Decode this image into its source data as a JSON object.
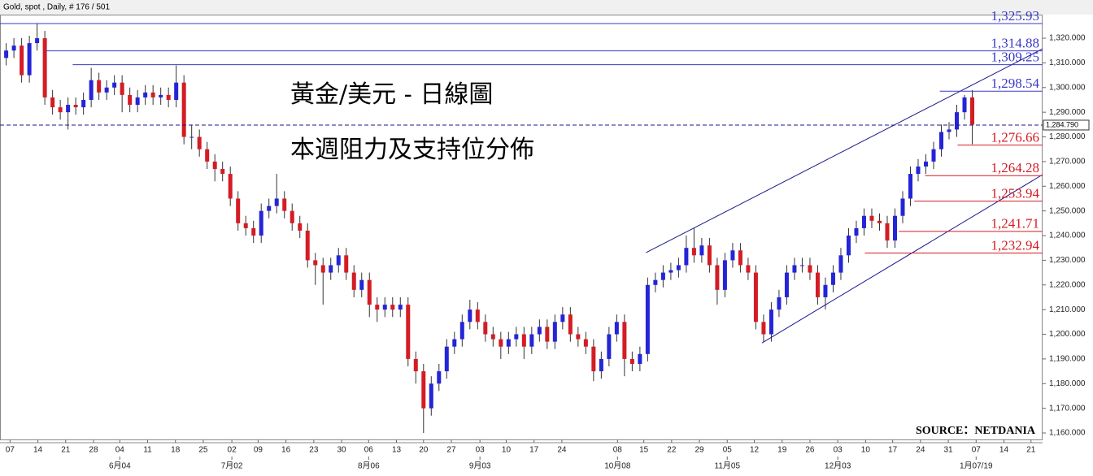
{
  "chart_data": {
    "type": "candlestick",
    "header": "Gold, spot , Daily, # 176 / 501",
    "title": "黃金/美元 - 日線圖",
    "subtitle": "本週阻力及支持位分佈",
    "source": "SOURCE：NETDANIA",
    "up_color": "#2424d8",
    "down_color": "#d41c24",
    "open": [
      1312,
      1315,
      1317,
      1305,
      1318,
      1320,
      1296,
      1292,
      1290,
      1293,
      1292,
      1295,
      1303,
      1298,
      1300,
      1302,
      1297,
      1293,
      1296,
      1298,
      1296,
      1297,
      1295,
      1302,
      1280,
      1280,
      1275,
      1270,
      1267,
      1265,
      1255,
      1245,
      1243,
      1240,
      1250,
      1252,
      1255,
      1250,
      1245,
      1242,
      1230,
      1228,
      1225,
      1228,
      1232,
      1225,
      1218,
      1222,
      1212,
      1210,
      1212,
      1210,
      1212,
      1190,
      1185,
      1170,
      1180,
      1185,
      1195,
      1198,
      1205,
      1210,
      1205,
      1200,
      1198,
      1195,
      1198,
      1200,
      1195,
      1200,
      1203,
      1197,
      1205,
      1208,
      1200,
      1198,
      1195,
      1185,
      1190,
      1200,
      1205,
      1190,
      1188,
      1192,
      1220,
      1222,
      1225,
      1226,
      1228,
      1235,
      1232,
      1236,
      1228,
      1218,
      1230,
      1234,
      1228,
      1225,
      1205,
      1200,
      1210,
      1215,
      1225,
      1228,
      1228,
      1225,
      1215,
      1220,
      1225,
      1232,
      1240,
      1243,
      1248,
      1246,
      1245,
      1238,
      1248,
      1255,
      1265,
      1268,
      1270,
      1275,
      1282,
      1283,
      1290,
      1296
    ],
    "high": [
      1318,
      1320,
      1320,
      1321,
      1326,
      1323,
      1299,
      1295,
      1296,
      1296,
      1298,
      1308,
      1306,
      1303,
      1305,
      1305,
      1300,
      1299,
      1301,
      1301,
      1300,
      1300,
      1309,
      1305,
      1285,
      1283,
      1278,
      1273,
      1270,
      1268,
      1258,
      1248,
      1246,
      1253,
      1255,
      1265,
      1258,
      1253,
      1248,
      1245,
      1233,
      1231,
      1231,
      1235,
      1235,
      1228,
      1225,
      1225,
      1215,
      1215,
      1215,
      1215,
      1215,
      1193,
      1188,
      1183,
      1188,
      1198,
      1201,
      1208,
      1214,
      1213,
      1208,
      1203,
      1201,
      1201,
      1203,
      1203,
      1203,
      1206,
      1206,
      1208,
      1211,
      1211,
      1203,
      1201,
      1198,
      1193,
      1203,
      1208,
      1208,
      1193,
      1195,
      1223,
      1225,
      1228,
      1229,
      1231,
      1240,
      1243,
      1239,
      1239,
      1231,
      1233,
      1237,
      1237,
      1231,
      1228,
      1208,
      1213,
      1218,
      1228,
      1231,
      1231,
      1231,
      1228,
      1223,
      1228,
      1235,
      1243,
      1246,
      1251,
      1251,
      1249,
      1248,
      1251,
      1258,
      1268,
      1271,
      1273,
      1278,
      1285,
      1286,
      1293,
      1297,
      1299
    ],
    "low": [
      1309,
      1312,
      1302,
      1302,
      1315,
      1293,
      1289,
      1287,
      1283,
      1289,
      1289,
      1292,
      1295,
      1295,
      1297,
      1290,
      1290,
      1290,
      1293,
      1293,
      1293,
      1292,
      1292,
      1277,
      1275,
      1272,
      1267,
      1262,
      1262,
      1252,
      1242,
      1240,
      1237,
      1237,
      1247,
      1249,
      1247,
      1242,
      1239,
      1227,
      1220,
      1212,
      1222,
      1225,
      1222,
      1215,
      1215,
      1207,
      1205,
      1207,
      1207,
      1207,
      1187,
      1180,
      1160,
      1167,
      1177,
      1182,
      1192,
      1195,
      1202,
      1202,
      1197,
      1195,
      1190,
      1192,
      1195,
      1190,
      1192,
      1197,
      1194,
      1194,
      1202,
      1197,
      1195,
      1192,
      1181,
      1182,
      1187,
      1197,
      1183,
      1185,
      1185,
      1189,
      1217,
      1219,
      1222,
      1223,
      1225,
      1229,
      1229,
      1225,
      1212,
      1215,
      1227,
      1225,
      1222,
      1202,
      1197,
      1197,
      1207,
      1212,
      1222,
      1225,
      1222,
      1212,
      1210,
      1217,
      1222,
      1229,
      1237,
      1240,
      1243,
      1242,
      1235,
      1235,
      1245,
      1252,
      1262,
      1265,
      1267,
      1272,
      1279,
      1280,
      1287,
      1277
    ],
    "close": [
      1315,
      1317,
      1305,
      1318,
      1320,
      1296,
      1292,
      1290,
      1293,
      1292,
      1295,
      1303,
      1298,
      1300,
      1302,
      1297,
      1293,
      1296,
      1298,
      1296,
      1297,
      1295,
      1302,
      1280,
      1280,
      1275,
      1270,
      1267,
      1265,
      1255,
      1245,
      1243,
      1240,
      1250,
      1252,
      1255,
      1250,
      1245,
      1242,
      1230,
      1228,
      1225,
      1228,
      1232,
      1225,
      1218,
      1222,
      1212,
      1210,
      1212,
      1210,
      1212,
      1190,
      1185,
      1170,
      1180,
      1185,
      1195,
      1198,
      1205,
      1210,
      1205,
      1200,
      1198,
      1195,
      1198,
      1200,
      1195,
      1200,
      1203,
      1197,
      1205,
      1208,
      1200,
      1198,
      1195,
      1185,
      1190,
      1200,
      1205,
      1190,
      1188,
      1192,
      1220,
      1222,
      1225,
      1226,
      1228,
      1235,
      1232,
      1236,
      1228,
      1218,
      1230,
      1234,
      1228,
      1225,
      1205,
      1200,
      1210,
      1215,
      1225,
      1228,
      1228,
      1225,
      1215,
      1220,
      1225,
      1232,
      1240,
      1243,
      1248,
      1246,
      1245,
      1238,
      1248,
      1255,
      1265,
      1268,
      1270,
      1275,
      1282,
      1283,
      1290,
      1296,
      1285
    ],
    "xlim": [
      -0.8,
      134.1
    ],
    "ylim": [
      1157.7,
      1328.9
    ],
    "xticks": [
      {
        "value": 0.5,
        "label": "07"
      },
      {
        "value": 4.1,
        "label": "14"
      },
      {
        "value": 7.7,
        "label": "21"
      },
      {
        "value": 11.3,
        "label": "28"
      },
      {
        "value": 14.7,
        "label": "04"
      },
      {
        "value": 18.3,
        "label": "11"
      },
      {
        "value": 21.9,
        "label": "18"
      },
      {
        "value": 25.5,
        "label": "25"
      },
      {
        "value": 29.2,
        "label": "02"
      },
      {
        "value": 32.6,
        "label": "09"
      },
      {
        "value": 36.2,
        "label": "16"
      },
      {
        "value": 39.8,
        "label": "23"
      },
      {
        "value": 43.4,
        "label": "30"
      },
      {
        "value": 46.9,
        "label": "06"
      },
      {
        "value": 50.5,
        "label": "13"
      },
      {
        "value": 54,
        "label": "20"
      },
      {
        "value": 57.6,
        "label": "27"
      },
      {
        "value": 61.3,
        "label": "03"
      },
      {
        "value": 64.7,
        "label": "10"
      },
      {
        "value": 68.3,
        "label": "17"
      },
      {
        "value": 71.9,
        "label": "24"
      },
      {
        "value": 79.1,
        "label": "08"
      },
      {
        "value": 82.5,
        "label": "15"
      },
      {
        "value": 86.1,
        "label": "22"
      },
      {
        "value": 89.7,
        "label": "29"
      },
      {
        "value": 93.3,
        "label": "05"
      },
      {
        "value": 96.8,
        "label": "12"
      },
      {
        "value": 100.4,
        "label": "19"
      },
      {
        "value": 104,
        "label": "26"
      },
      {
        "value": 107.6,
        "label": "03"
      },
      {
        "value": 111.2,
        "label": "10"
      },
      {
        "value": 114.7,
        "label": "17"
      },
      {
        "value": 118.3,
        "label": "24"
      },
      {
        "value": 121.9,
        "label": "31"
      },
      {
        "value": 125.5,
        "label": "07"
      },
      {
        "value": 129.1,
        "label": "14"
      },
      {
        "value": 132.6,
        "label": "21"
      }
    ],
    "month_ticks": [
      {
        "value": 14.7,
        "label": "6月04"
      },
      {
        "value": 29.2,
        "label": "7月02"
      },
      {
        "value": 46.9,
        "label": "8月06"
      },
      {
        "value": 61.3,
        "label": "9月03"
      },
      {
        "value": 79.1,
        "label": "10月08"
      },
      {
        "value": 93.3,
        "label": "11月05"
      },
      {
        "value": 107.6,
        "label": "12月03"
      },
      {
        "value": 125.5,
        "label": "1月07/19"
      }
    ],
    "yticks": [
      {
        "value": 1160,
        "label": "1,160.000"
      },
      {
        "value": 1170,
        "label": "1,170.000"
      },
      {
        "value": 1180,
        "label": "1,180.000"
      },
      {
        "value": 1190,
        "label": "1,190.000"
      },
      {
        "value": 1200,
        "label": "1,200.000"
      },
      {
        "value": 1210,
        "label": "1,210.000"
      },
      {
        "value": 1220,
        "label": "1,220.000"
      },
      {
        "value": 1230,
        "label": "1,230.000"
      },
      {
        "value": 1240,
        "label": "1,240.000"
      },
      {
        "value": 1250,
        "label": "1,250.000"
      },
      {
        "value": 1260,
        "label": "1,260.000"
      },
      {
        "value": 1270,
        "label": "1,270.000"
      },
      {
        "value": 1280,
        "label": "1,280.000"
      },
      {
        "value": 1290,
        "label": "1,290.000"
      },
      {
        "value": 1300,
        "label": "1,300.000"
      },
      {
        "value": 1310,
        "label": "1,310.000"
      },
      {
        "value": 1320,
        "label": "1,320.000"
      }
    ],
    "current_price": {
      "value": 1284.79,
      "label": "1,284.790"
    },
    "levels": [
      {
        "value": 1325.93,
        "label": "1,325.93",
        "x_start": -0.8,
        "color": "#3a3ac8"
      },
      {
        "value": 1314.88,
        "label": "1,314.88",
        "x_start": 5,
        "color": "#3a3ac8"
      },
      {
        "value": 1309.25,
        "label": "1,309.25",
        "x_start": 8.6,
        "color": "#3a3ac8"
      },
      {
        "value": 1298.54,
        "label": "1,298.54",
        "x_start": 120.8,
        "color": "#3a3ac8"
      },
      {
        "value": 1276.66,
        "label": "1,276.66",
        "x_start": 123.1,
        "color": "#d41c24"
      },
      {
        "value": 1264.28,
        "label": "1,264.28",
        "x_start": 118.9,
        "color": "#d41c24"
      },
      {
        "value": 1253.94,
        "label": "1,253.94",
        "x_start": 117.5,
        "color": "#d41c24"
      },
      {
        "value": 1241.71,
        "label": "1,241.71",
        "x_start": 115.5,
        "color": "#d41c24"
      },
      {
        "value": 1232.94,
        "label": "1,232.94",
        "x_start": 111.1,
        "color": "#d41c24"
      }
    ],
    "trend_lines": [
      {
        "x": [
          82.8,
          134.1
        ],
        "y": [
          1233.1,
          1315.7
        ]
      },
      {
        "x": [
          97.8,
          134.1
        ],
        "y": [
          1196.5,
          1264.7
        ]
      }
    ]
  }
}
